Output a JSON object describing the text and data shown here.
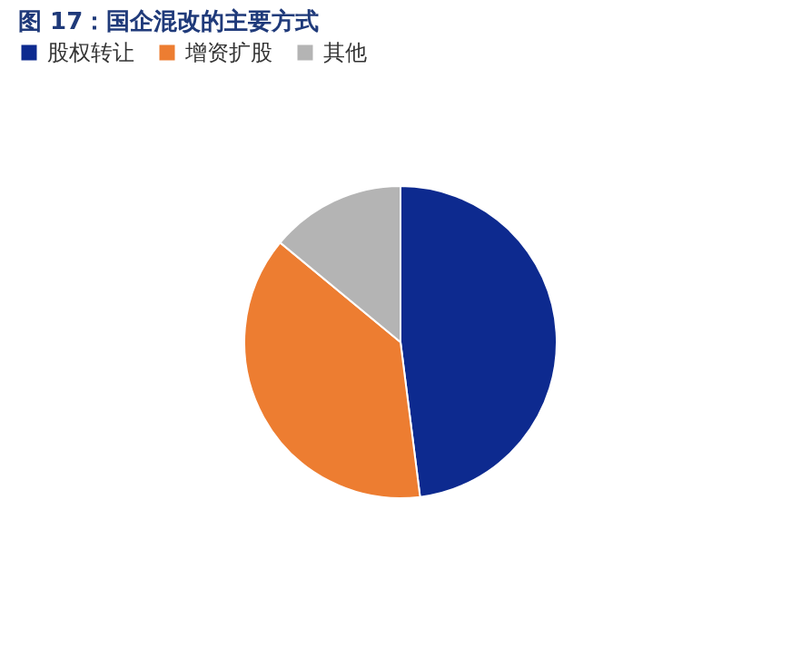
{
  "chart_data": {
    "type": "pie",
    "title": "图 17：国企混改的主要方式",
    "categories": [
      "股权转让",
      "增资扩股",
      "其他"
    ],
    "values": [
      48,
      38,
      14
    ],
    "colors": [
      "#0d2a8f",
      "#ed7d31",
      "#b4b4b4"
    ],
    "legend": "top"
  }
}
